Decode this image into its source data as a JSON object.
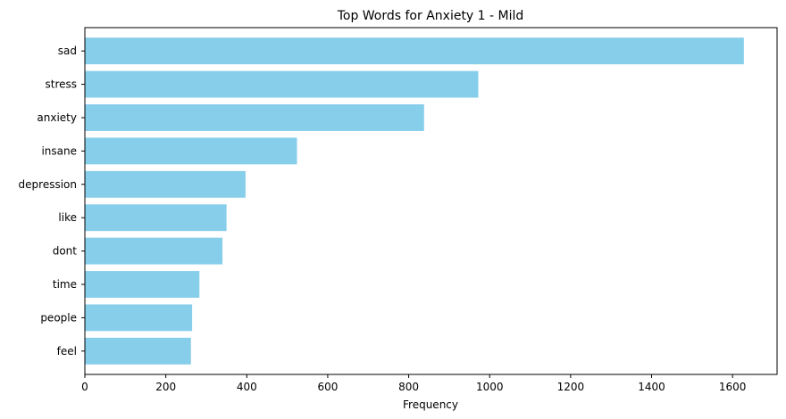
{
  "chart_data": {
    "type": "bar",
    "orientation": "horizontal",
    "title": "Top Words for Anxiety 1 - Mild",
    "xlabel": "Frequency",
    "ylabel": "",
    "categories": [
      "sad",
      "stress",
      "anxiety",
      "insane",
      "depression",
      "like",
      "dont",
      "time",
      "people",
      "feel"
    ],
    "values": [
      1628,
      972,
      838,
      524,
      397,
      350,
      340,
      283,
      265,
      262
    ],
    "xlim": [
      0,
      1710
    ],
    "xticks": [
      0,
      200,
      400,
      600,
      800,
      1000,
      1200,
      1400,
      1600
    ],
    "grid": false,
    "bar_color": "#87CEEB"
  }
}
